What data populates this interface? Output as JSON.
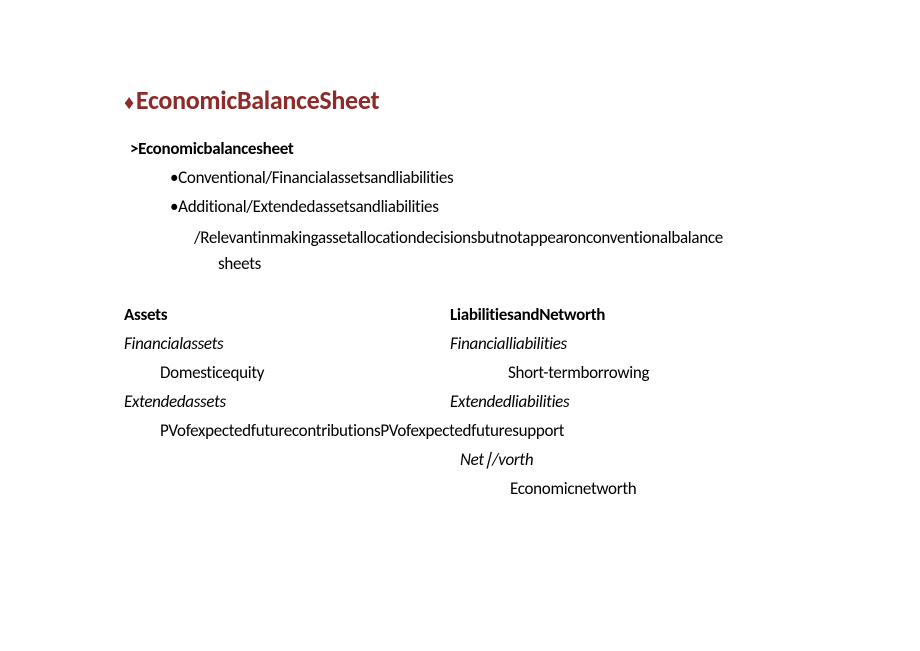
{
  "title": {
    "diamond": "♦",
    "text": "EconomicBalanceSheet"
  },
  "sub_head": ">Economicbalancesheet",
  "bullets": {
    "b1": "•Conventional/Financialassetsandliabilities",
    "b2": "•Additional/Extendedassetsandliabilities"
  },
  "slash_note": {
    "line1": "/Relevantinmakingassetallocationdecisionsbutnotappearonconventionalbalance",
    "line2": "sheets"
  },
  "table": {
    "left_header": "Assets",
    "right_header": "LiabilitiesandNetworth",
    "left_sub1": "Financialassets",
    "right_sub1": "Financialliabilities",
    "left_item1": "Domesticequity",
    "right_item1": "Short-termborrowing",
    "left_sub2": "Extendedassets",
    "right_sub2": "Extendedliabilities",
    "pv_row": "PVofexpectedfuturecontributionsPVofexpectedfuturesupport",
    "networth_label": "Net∣/vorth",
    "networth_item": "Economicnetworth"
  },
  "colors": {
    "title": "#8f2a2a",
    "text": "#000000",
    "background": "#ffffff"
  },
  "fonts": {
    "title_size": 26,
    "body_size": 17
  }
}
